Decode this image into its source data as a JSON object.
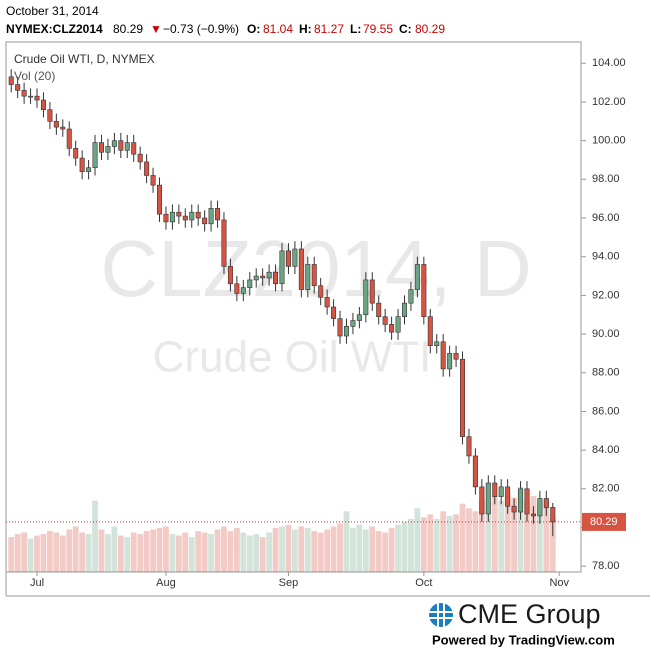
{
  "chart_data": {
    "type": "candlestick",
    "date": "October 31, 2014",
    "symbol": "NYMEX:CLZ2014",
    "change_arrow": "▼",
    "change": "−0.73 (−0.9%)",
    "o_label": "O:",
    "h_label": "H:",
    "l_label": "L:",
    "c_label": "C:",
    "title": "Crude Oil WTI, D, NYMEX",
    "volume_label": "Vol (20)",
    "watermark": "CLZ2014, D",
    "watermark_sub": "Crude Oil WTI",
    "logo": "CME Group",
    "powered": "Powered by TradingView.com",
    "up_color": "#6ba583",
    "down_color": "#d75442",
    "categories": [
      null,
      null,
      null,
      null,
      "Jul",
      null,
      null,
      null,
      null,
      null,
      null,
      null,
      null,
      null,
      null,
      null,
      null,
      null,
      null,
      null,
      null,
      null,
      null,
      null,
      "Aug",
      null,
      null,
      null,
      null,
      null,
      null,
      null,
      null,
      null,
      null,
      null,
      null,
      null,
      null,
      null,
      null,
      null,
      null,
      "Sep",
      null,
      null,
      null,
      null,
      null,
      null,
      null,
      null,
      null,
      null,
      null,
      null,
      null,
      null,
      null,
      null,
      null,
      null,
      null,
      null,
      "Oct",
      null,
      null,
      null,
      null,
      null,
      null,
      null,
      null,
      null,
      null,
      null,
      null,
      null,
      null,
      null,
      null,
      null,
      null,
      null,
      null
    ],
    "next_label": "Nov",
    "open": [
      103.3,
      102.9,
      102.6,
      102.3,
      102.3,
      102.1,
      101.6,
      101.0,
      100.7,
      100.6,
      99.6,
      99.1,
      98.4,
      98.6,
      99.9,
      99.4,
      99.7,
      100.0,
      99.5,
      99.9,
      99.3,
      98.9,
      98.2,
      97.7,
      96.2,
      95.8,
      96.3,
      96.1,
      95.9,
      96.3,
      96.0,
      95.7,
      96.5,
      95.9,
      93.5,
      92.6,
      92.1,
      92.4,
      92.8,
      93.0,
      92.9,
      93.2,
      92.6,
      94.3,
      93.5,
      94.4,
      92.3,
      93.6,
      92.5,
      91.9,
      91.4,
      90.8,
      89.9,
      90.4,
      90.7,
      91.0,
      92.8,
      91.6,
      90.9,
      90.5,
      90.1,
      90.9,
      91.6,
      92.3,
      93.6,
      90.9,
      89.4,
      89.6,
      88.2,
      89.0,
      88.7,
      84.7,
      83.7,
      82.1,
      80.7,
      82.3,
      81.6,
      82.1,
      81.1,
      80.8,
      82.0,
      80.7,
      80.6,
      81.5,
      81.04
    ],
    "high": [
      103.7,
      103.3,
      103.0,
      102.7,
      102.7,
      102.5,
      102.0,
      101.4,
      101.1,
      101.0,
      100.0,
      99.5,
      99.0,
      100.3,
      100.3,
      100.1,
      100.4,
      100.4,
      100.3,
      100.3,
      99.7,
      99.3,
      98.6,
      98.1,
      96.6,
      96.7,
      96.7,
      96.5,
      96.7,
      96.7,
      96.4,
      96.9,
      96.9,
      96.3,
      93.9,
      93.0,
      92.8,
      93.2,
      93.4,
      93.4,
      93.6,
      93.6,
      94.7,
      94.7,
      94.8,
      94.8,
      94.0,
      94.0,
      92.9,
      92.3,
      91.8,
      91.2,
      90.8,
      91.1,
      91.4,
      93.2,
      93.2,
      92.0,
      91.3,
      90.9,
      91.3,
      92.0,
      92.7,
      94.0,
      94.0,
      91.3,
      90.0,
      90.0,
      89.4,
      89.4,
      89.1,
      85.1,
      84.1,
      82.5,
      82.7,
      82.7,
      82.5,
      82.5,
      81.5,
      82.4,
      82.4,
      81.1,
      81.9,
      81.9,
      81.27
    ],
    "low": [
      102.5,
      102.2,
      101.9,
      101.9,
      101.7,
      101.2,
      100.6,
      100.3,
      100.2,
      99.2,
      98.7,
      98.0,
      98.0,
      98.2,
      99.0,
      99.0,
      99.3,
      99.1,
      99.1,
      98.9,
      98.5,
      97.8,
      97.3,
      95.8,
      95.4,
      95.4,
      95.7,
      95.5,
      95.5,
      95.6,
      95.3,
      95.3,
      95.5,
      93.1,
      92.2,
      91.7,
      91.7,
      92.0,
      92.4,
      92.5,
      92.5,
      92.2,
      92.2,
      93.1,
      93.1,
      91.9,
      91.9,
      92.1,
      91.5,
      91.0,
      90.4,
      89.5,
      89.5,
      90.0,
      90.3,
      90.6,
      91.2,
      90.5,
      90.1,
      89.7,
      89.7,
      90.5,
      91.2,
      91.9,
      90.5,
      89.0,
      89.0,
      87.8,
      87.8,
      88.3,
      84.3,
      83.3,
      81.7,
      80.3,
      80.3,
      81.2,
      81.2,
      80.7,
      80.4,
      80.4,
      80.3,
      80.2,
      80.2,
      80.6,
      79.55
    ],
    "close": [
      102.9,
      102.6,
      102.3,
      102.3,
      102.1,
      101.6,
      101.0,
      100.7,
      100.6,
      99.6,
      99.1,
      98.4,
      98.6,
      99.9,
      99.4,
      99.7,
      100.0,
      99.5,
      99.9,
      99.3,
      98.9,
      98.2,
      97.7,
      96.2,
      95.8,
      96.3,
      96.1,
      95.9,
      96.3,
      96.0,
      95.7,
      96.5,
      95.9,
      93.5,
      92.6,
      92.1,
      92.4,
      92.8,
      93.0,
      92.9,
      93.2,
      92.6,
      94.3,
      93.5,
      94.4,
      92.3,
      93.6,
      92.5,
      91.9,
      91.4,
      90.8,
      89.9,
      90.4,
      90.7,
      91.0,
      92.8,
      91.6,
      90.9,
      90.5,
      90.1,
      90.9,
      91.6,
      92.3,
      93.6,
      90.9,
      89.4,
      89.6,
      88.2,
      89.0,
      88.7,
      84.7,
      83.7,
      82.1,
      80.7,
      82.3,
      81.6,
      82.1,
      81.1,
      80.8,
      82.0,
      80.7,
      80.6,
      81.5,
      81.02,
      80.29
    ],
    "volume": [
      230,
      250,
      260,
      220,
      240,
      250,
      270,
      260,
      240,
      280,
      300,
      260,
      250,
      470,
      280,
      250,
      300,
      240,
      230,
      260,
      250,
      270,
      280,
      290,
      300,
      250,
      240,
      260,
      230,
      270,
      260,
      250,
      280,
      300,
      270,
      290,
      260,
      240,
      250,
      230,
      260,
      290,
      300,
      310,
      280,
      300,
      290,
      270,
      260,
      280,
      300,
      320,
      400,
      290,
      310,
      280,
      300,
      270,
      260,
      290,
      310,
      330,
      350,
      420,
      360,
      380,
      350,
      400,
      370,
      380,
      450,
      420,
      400,
      480,
      460,
      500,
      470,
      520,
      490,
      560,
      470,
      500,
      450,
      480,
      380
    ],
    "ylim": [
      77.7,
      105.1
    ],
    "yticks": [
      {
        "value": 78,
        "label": "78.00"
      },
      {
        "value": 80,
        "label": "80.00"
      },
      {
        "value": 82,
        "label": "82.00"
      },
      {
        "value": 84,
        "label": "84.00"
      },
      {
        "value": 86,
        "label": "86.00"
      },
      {
        "value": 88,
        "label": "88.00"
      },
      {
        "value": 90,
        "label": "90.00"
      },
      {
        "value": 92,
        "label": "92.00"
      },
      {
        "value": 94,
        "label": "94.00"
      },
      {
        "value": 96,
        "label": "96.00"
      },
      {
        "value": 98,
        "label": "98.00"
      },
      {
        "value": 100,
        "label": "100.00"
      },
      {
        "value": 102,
        "label": "102.00"
      },
      {
        "value": 104,
        "label": "104.00"
      }
    ]
  }
}
